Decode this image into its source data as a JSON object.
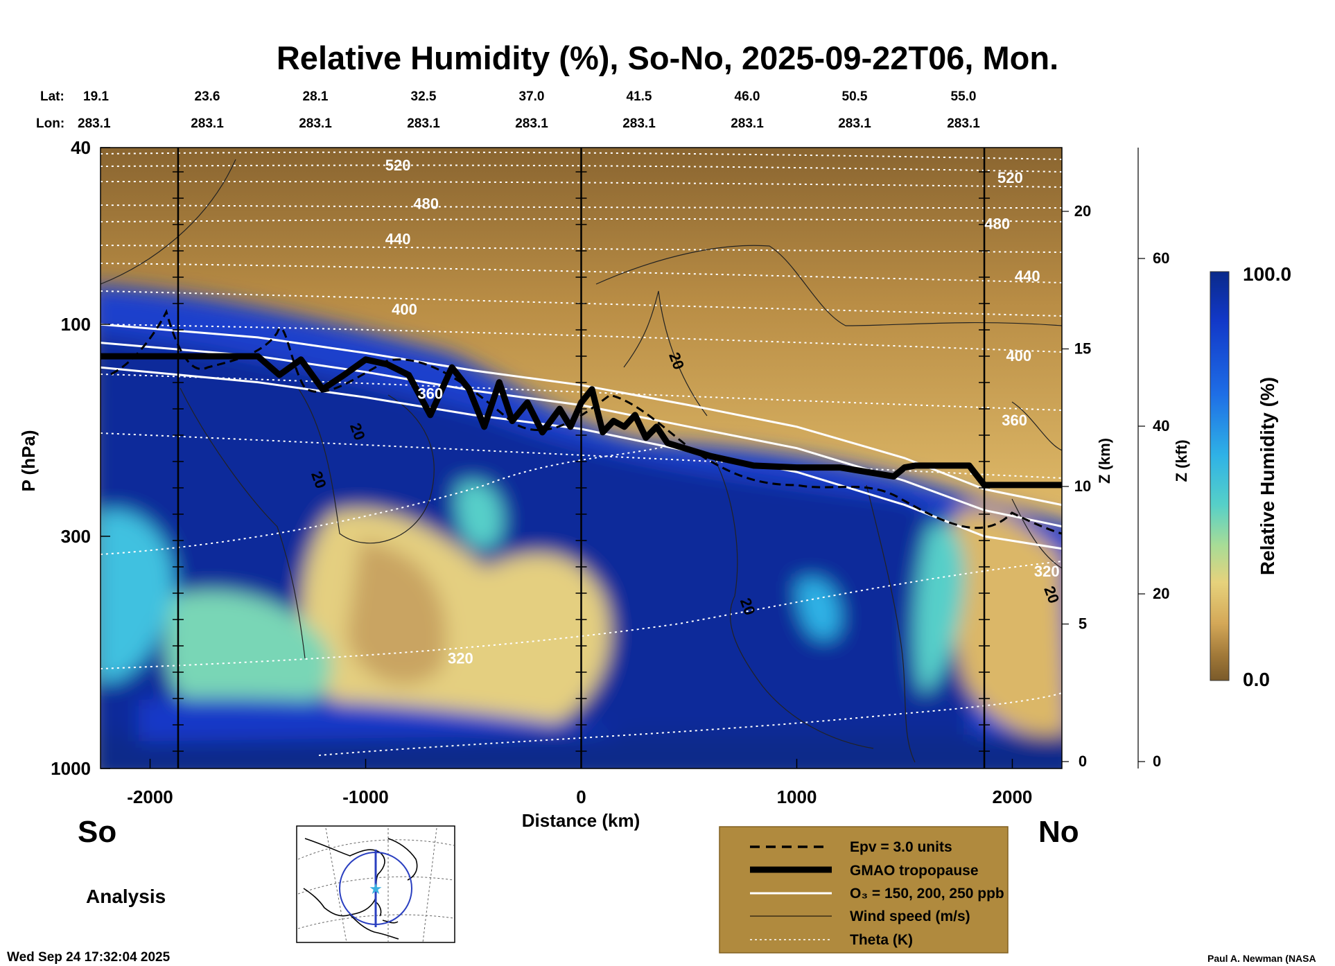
{
  "title": "Relative Humidity (%), So-No, 2025-09-22T06, Mon.",
  "header": {
    "lat_label": "Lat:",
    "lon_label": "Lon:",
    "lats": [
      "19.1",
      "23.6",
      "28.1",
      "32.5",
      "37.0",
      "41.5",
      "46.0",
      "50.5",
      "55.0"
    ],
    "lons": [
      "283.1",
      "283.1",
      "283.1",
      "283.1",
      "283.1",
      "283.1",
      "283.1",
      "283.1",
      "283.1"
    ]
  },
  "labels": {
    "south": "So",
    "north": "No",
    "analysis": "Analysis",
    "timestamp": "Wed Sep 24 17:32:04 2025",
    "credit": "Paul A. Newman (NASA"
  },
  "legend": {
    "items": [
      "Epv = 3.0 units",
      "GMAO tropopause",
      "O₃ = 150, 200, 250 ppb",
      "Wind speed (m/s)",
      "Theta (K)"
    ],
    "bg_color": "#b08a3e"
  },
  "colorbar": {
    "label": "Relative Humidity (%)",
    "max_label": "100.0",
    "min_label": "0.0",
    "colors": [
      "#0a2a8a",
      "#1238c8",
      "#1e6ee6",
      "#2fb2e6",
      "#56d0c8",
      "#a8dc96",
      "#e6d27c",
      "#d4a858",
      "#a07838",
      "#7a5a2a"
    ]
  },
  "chart_data": {
    "type": "heatmap",
    "xlabel": "Distance (km)",
    "ylabel": "P (hPa)",
    "z_km_label": "Z (km)",
    "z_kft_label": "Z (kft)",
    "xlim": [
      -2230,
      2230
    ],
    "ylim_hpa": [
      1000,
      40
    ],
    "x_ticks": [
      -2000,
      -1000,
      0,
      1000,
      2000
    ],
    "x_tick_labels": [
      "-2000",
      "-1000",
      "0",
      "1000",
      "2000"
    ],
    "p_tick_labels": [
      "40",
      "100",
      "300",
      "1000"
    ],
    "p_ticks": [
      40,
      100,
      300,
      1000
    ],
    "z_km_ticks": [
      0,
      5,
      10,
      15,
      20
    ],
    "z_km_tick_labels": [
      "0",
      "5",
      "10",
      "15",
      "20"
    ],
    "z_kft_ticks": [
      0,
      20,
      40,
      60
    ],
    "z_kft_tick_labels": [
      "0",
      "20",
      "40",
      "60"
    ],
    "vertical_lines_km": [
      -1870,
      0,
      1870
    ],
    "theta_labels": [
      {
        "text": "520",
        "x": -850,
        "p": 45
      },
      {
        "text": "480",
        "x": -720,
        "p": 55
      },
      {
        "text": "440",
        "x": -850,
        "p": 66
      },
      {
        "text": "400",
        "x": -820,
        "p": 95
      },
      {
        "text": "360",
        "x": -700,
        "p": 147
      },
      {
        "text": "320",
        "x": -560,
        "p": 580
      },
      {
        "text": "520",
        "x": 1990,
        "p": 48
      },
      {
        "text": "480",
        "x": 1930,
        "p": 61
      },
      {
        "text": "440",
        "x": 2070,
        "p": 80
      },
      {
        "text": "400",
        "x": 2030,
        "p": 121
      },
      {
        "text": "360",
        "x": 2010,
        "p": 169
      },
      {
        "text": "320",
        "x": 2160,
        "p": 370
      }
    ],
    "wind_labels": [
      {
        "text": "20",
        "x": 420,
        "p": 122
      },
      {
        "text": "20",
        "x": -1060,
        "p": 176
      },
      {
        "text": "20",
        "x": -1240,
        "p": 226
      },
      {
        "text": "20",
        "x": 750,
        "p": 436
      },
      {
        "text": "20",
        "x": 2160,
        "p": 410
      }
    ],
    "tropopause": {
      "x": [
        -2230,
        -1870,
        -1500,
        -1400,
        -1300,
        -1200,
        -1100,
        -1000,
        -900,
        -800,
        -700,
        -600,
        -520,
        -450,
        -380,
        -320,
        -250,
        -180,
        -100,
        -50,
        0,
        50,
        100,
        150,
        200,
        250,
        300,
        350,
        400,
        600,
        800,
        1000,
        1200,
        1450,
        1500,
        1550,
        1700,
        1800,
        1870,
        2230
      ],
      "p": [
        118,
        118,
        118,
        130,
        120,
        140,
        130,
        120,
        123,
        130,
        160,
        125,
        140,
        170,
        135,
        165,
        150,
        175,
        155,
        170,
        150,
        140,
        175,
        165,
        170,
        160,
        180,
        170,
        185,
        198,
        208,
        210,
        210,
        220,
        210,
        208,
        208,
        208,
        230,
        230
      ]
    },
    "ozone_lines_p_at_x": {
      "x": [
        -2230,
        -1500,
        -1000,
        -500,
        0,
        500,
        1000,
        1500,
        1870,
        2230
      ],
      "o3_150": [
        100,
        107,
        116,
        127,
        137,
        152,
        170,
        200,
        235,
        255
      ],
      "o3_200": [
        110,
        118,
        128,
        141,
        152,
        170,
        190,
        225,
        262,
        285
      ],
      "o3_250": [
        125,
        135,
        146,
        160,
        172,
        193,
        215,
        255,
        300,
        320
      ]
    },
    "theta_contours_K": [
      320,
      360,
      400,
      440,
      480,
      520
    ]
  }
}
